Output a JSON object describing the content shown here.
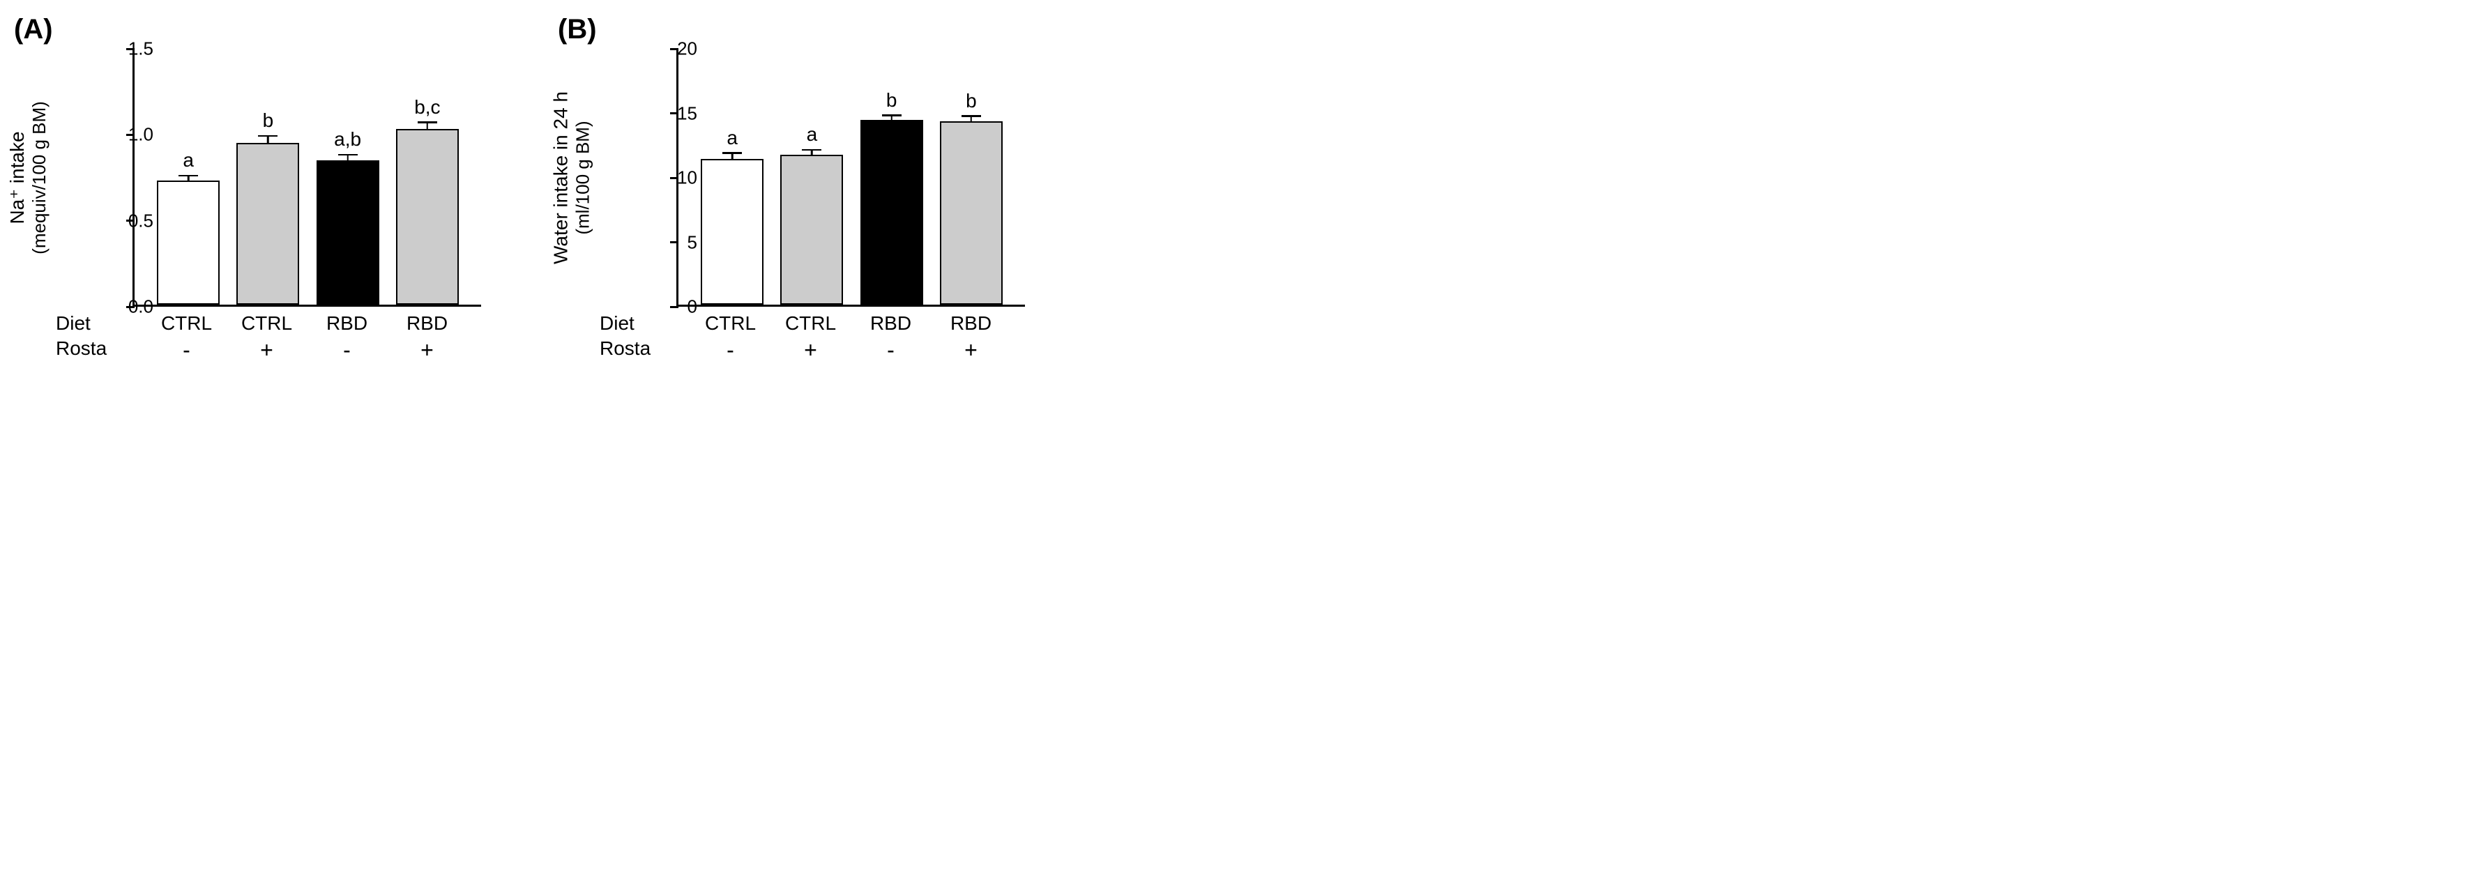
{
  "panels": [
    {
      "label": "(A)",
      "ylabel_line1": "Na⁺ intake",
      "ylabel_line2": "(mequiv/100 g BM)",
      "ylim": [
        0.0,
        1.5
      ],
      "yticks": [
        0.0,
        0.5,
        1.0,
        1.5
      ],
      "ytick_labels": [
        "0.0",
        "0.5",
        "1.0",
        "1.5"
      ],
      "bars": [
        {
          "value": 0.72,
          "err": 0.03,
          "fill": "#ffffff",
          "sig": "a"
        },
        {
          "value": 0.94,
          "err": 0.04,
          "fill": "#cccccc",
          "sig": "b"
        },
        {
          "value": 0.84,
          "err": 0.03,
          "fill": "#000000",
          "sig": "a,b"
        },
        {
          "value": 1.02,
          "err": 0.04,
          "fill": "#cccccc",
          "sig": "b,c"
        }
      ],
      "diet_row": [
        "CTRL",
        "CTRL",
        "RBD",
        "RBD"
      ],
      "rosta_row": [
        "-",
        "+",
        "-",
        "+"
      ],
      "row_headers": [
        "Diet",
        "Rosta"
      ]
    },
    {
      "label": "(B)",
      "ylabel_line1": "Water intake in 24 h",
      "ylabel_line2": "(ml/100 g BM)",
      "ylim": [
        0,
        20
      ],
      "yticks": [
        0,
        5,
        10,
        15,
        20
      ],
      "ytick_labels": [
        "0",
        "5",
        "10",
        "15",
        "20"
      ],
      "bars": [
        {
          "value": 11.3,
          "err": 0.45,
          "fill": "#ffffff",
          "sig": "a"
        },
        {
          "value": 11.6,
          "err": 0.4,
          "fill": "#cccccc",
          "sig": "a"
        },
        {
          "value": 14.3,
          "err": 0.35,
          "fill": "#000000",
          "sig": "b"
        },
        {
          "value": 14.2,
          "err": 0.4,
          "fill": "#cccccc",
          "sig": "b"
        }
      ],
      "diet_row": [
        "CTRL",
        "CTRL",
        "RBD",
        "RBD"
      ],
      "rosta_row": [
        "-",
        "+",
        "-",
        "+"
      ],
      "row_headers": [
        "Diet",
        "Rosta"
      ]
    }
  ],
  "colors": {
    "axis": "#000000",
    "background": "#ffffff"
  },
  "fonts": {
    "panel_label": 40,
    "axis_label": 28,
    "tick": 26,
    "sig": 28
  }
}
